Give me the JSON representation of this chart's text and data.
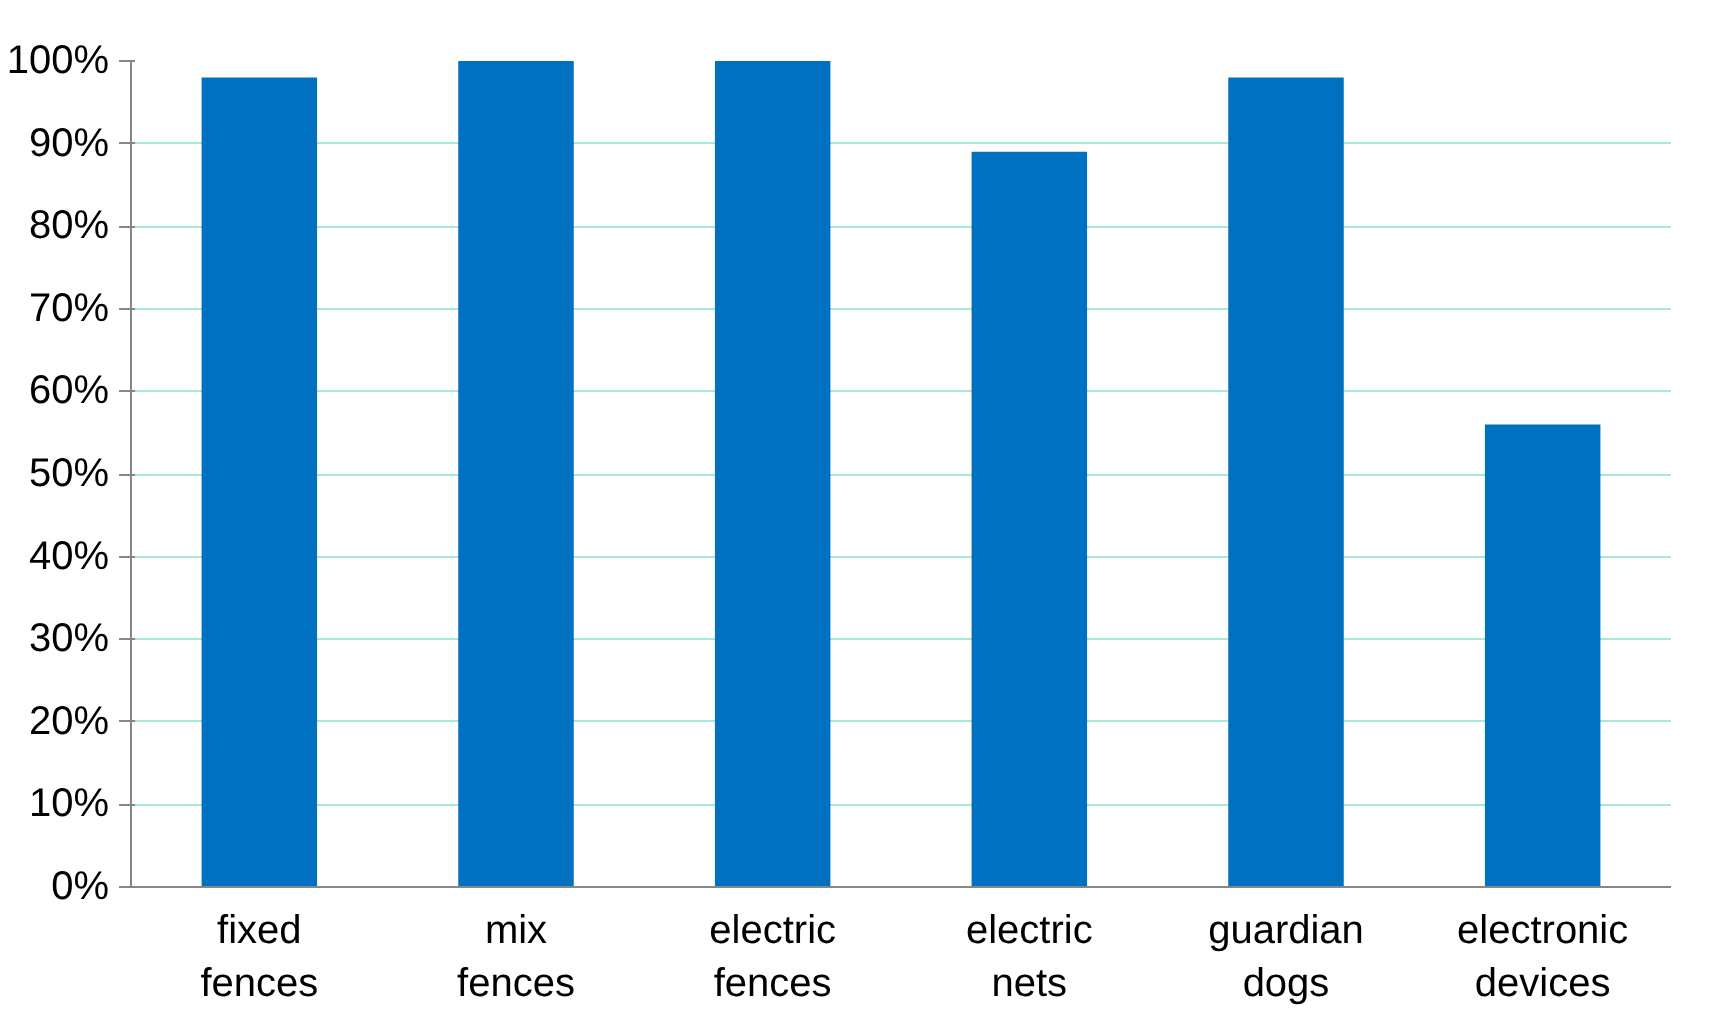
{
  "chart_data": {
    "type": "bar",
    "categories": [
      "fixed fences",
      "mix fences",
      "electric fences",
      "electric nets",
      "guardian dogs",
      "electronic devices"
    ],
    "values": [
      98,
      100,
      100,
      89,
      98,
      56
    ],
    "color": "#0070c0",
    "ylim": [
      0,
      100
    ],
    "yticks": [
      {
        "value": 0,
        "label": "0%"
      },
      {
        "value": 10,
        "label": "10%"
      },
      {
        "value": 20,
        "label": "20%"
      },
      {
        "value": 30,
        "label": "30%"
      },
      {
        "value": 40,
        "label": "40%"
      },
      {
        "value": 50,
        "label": "50%"
      },
      {
        "value": 60,
        "label": "60%"
      },
      {
        "value": 70,
        "label": "70%"
      },
      {
        "value": 80,
        "label": "80%"
      },
      {
        "value": 90,
        "label": "90%"
      },
      {
        "value": 100,
        "label": "100%"
      }
    ],
    "grid": "y"
  }
}
